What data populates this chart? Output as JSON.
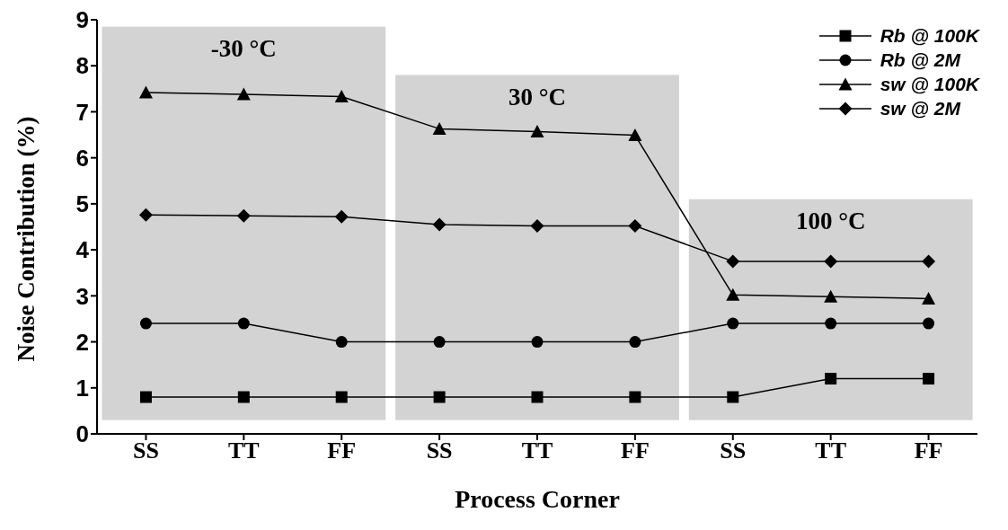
{
  "chart_data": {
    "type": "line",
    "xlabel": "Process Corner",
    "ylabel": "Noise Contribution (%)",
    "categories": [
      "SS",
      "TT",
      "FF",
      "SS",
      "TT",
      "FF",
      "SS",
      "TT",
      "FF"
    ],
    "series": [
      {
        "name": "Rb @ 100K",
        "color": "#000000",
        "marker": "square",
        "values": [
          0.8,
          0.8,
          0.8,
          0.8,
          0.8,
          0.8,
          0.8,
          1.2,
          1.2
        ]
      },
      {
        "name": "Rb @ 2M",
        "color": "#000000",
        "marker": "circle",
        "values": [
          2.4,
          2.4,
          2.0,
          2.0,
          2.0,
          2.0,
          2.4,
          2.4,
          2.4
        ]
      },
      {
        "name": "sw @ 100K",
        "color": "#000000",
        "marker": "triangle",
        "values": [
          7.42,
          7.38,
          7.33,
          6.63,
          6.57,
          6.49,
          3.02,
          2.98,
          2.94
        ]
      },
      {
        "name": "sw @ 2M",
        "color": "#000000",
        "marker": "diamond",
        "values": [
          4.76,
          4.74,
          4.72,
          4.55,
          4.52,
          4.52,
          3.75,
          3.75,
          3.75
        ]
      }
    ],
    "annotations": [
      "-30 °C",
      "30 °C",
      "100 °C"
    ],
    "ylim": [
      0,
      9
    ],
    "yticks": [
      0,
      1,
      2,
      3,
      4,
      5,
      6,
      7,
      8,
      9
    ],
    "grid": false,
    "legend": "top right",
    "line_style": "solid"
  }
}
